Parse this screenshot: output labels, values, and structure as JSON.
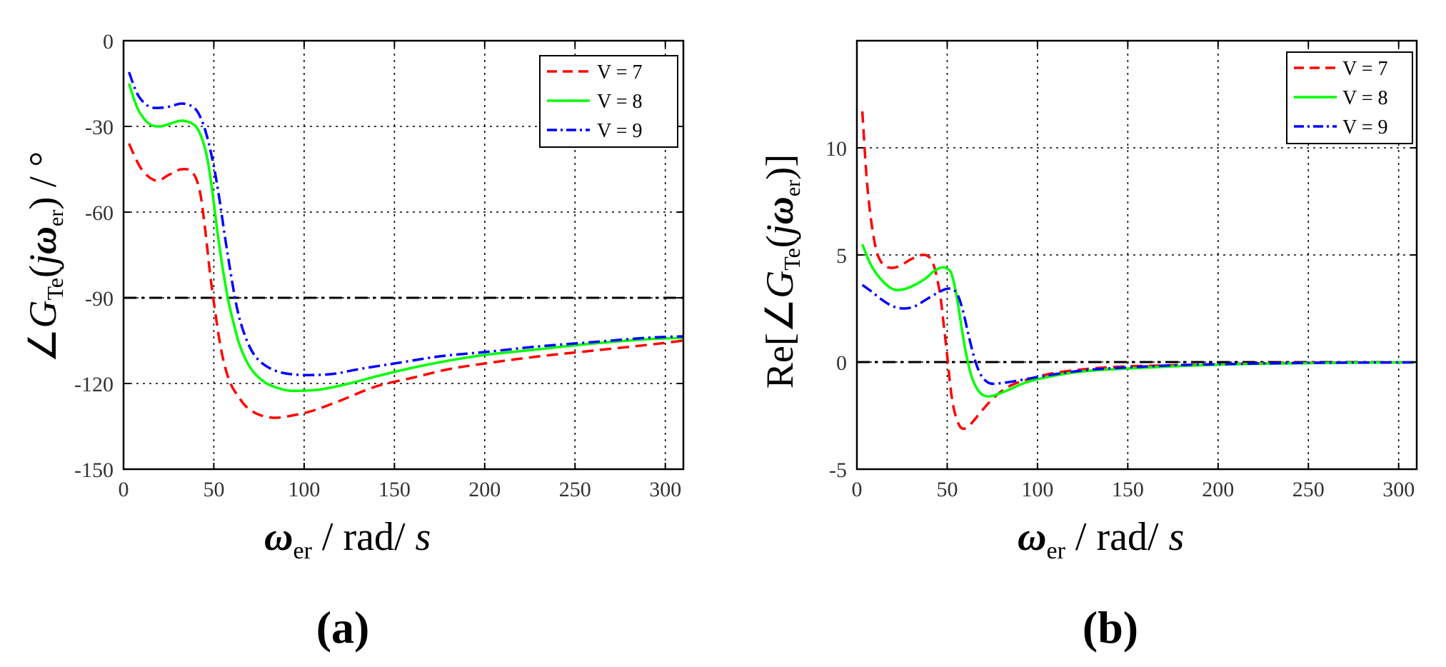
{
  "chart_data": [
    {
      "type": "line",
      "panel_label": "(a)",
      "xlabel": {
        "symbol": "ω",
        "sub": "er",
        "unit": " / rad/ ",
        "unit_ital": "s"
      },
      "ylabel": {
        "prefix": "∠",
        "func": "G",
        "sub": "Te",
        "open": "(",
        "j": "j",
        "omega": "ω",
        "sub2": "er",
        "close": ")",
        "unit": " / °"
      },
      "xlim": [
        0,
        310
      ],
      "ylim": [
        -150,
        0
      ],
      "xticks": [
        0,
        50,
        100,
        150,
        200,
        250,
        300
      ],
      "yticks": [
        -150,
        -120,
        -90,
        -60,
        -30,
        0
      ],
      "xtick_labels": [
        "0",
        "50",
        "100",
        "150",
        "200",
        "250",
        "300"
      ],
      "ytick_labels": [
        "-150",
        "-120",
        "-90",
        "-60",
        "-30",
        "0"
      ],
      "grid": true,
      "legend_position": "top-right",
      "reference_line": {
        "y": -90
      },
      "series": [
        {
          "name": "V = 7",
          "color": "#ff0000",
          "dash": "dashed",
          "x": [
            3,
            10,
            18,
            25,
            32,
            38,
            42,
            45,
            48,
            51,
            54,
            57,
            60,
            63,
            67,
            72,
            78,
            85,
            95,
            105,
            120,
            140,
            160,
            180,
            200,
            230,
            260,
            290,
            310
          ],
          "y": [
            -36,
            -45,
            -49,
            -47,
            -45,
            -46,
            -52,
            -65,
            -82,
            -96,
            -108,
            -116,
            -121,
            -124,
            -127.5,
            -130,
            -131.5,
            -132,
            -131,
            -129.5,
            -126,
            -121,
            -118,
            -115,
            -113,
            -110.5,
            -108.5,
            -106.5,
            -105
          ]
        },
        {
          "name": "V = 8",
          "color": "#00ff00",
          "dash": "solid",
          "x": [
            3,
            8,
            14,
            20,
            26,
            32,
            38,
            42,
            46,
            49,
            52,
            55,
            58,
            61,
            64,
            68,
            72,
            78,
            85,
            92,
            100,
            110,
            125,
            140,
            160,
            180,
            200,
            230,
            260,
            290,
            310
          ],
          "y": [
            -15,
            -24,
            -29,
            -30,
            -29,
            -28,
            -29,
            -32,
            -40,
            -52,
            -67,
            -80,
            -91,
            -99,
            -106,
            -112,
            -116,
            -119.5,
            -121.5,
            -122.5,
            -122.5,
            -122,
            -120,
            -117.5,
            -114.5,
            -112,
            -110,
            -108,
            -106,
            -104.5,
            -104
          ]
        },
        {
          "name": "V = 9",
          "color": "#0000ff",
          "dash": "dashdot",
          "x": [
            3,
            8,
            14,
            20,
            26,
            32,
            38,
            42,
            46,
            50,
            53,
            56,
            59,
            62,
            65,
            69,
            73,
            78,
            84,
            90,
            98,
            108,
            118,
            130,
            150,
            175,
            200,
            230,
            260,
            290,
            310
          ],
          "y": [
            -11,
            -19,
            -23,
            -23.5,
            -23,
            -22,
            -23,
            -26,
            -33,
            -44,
            -55,
            -68,
            -80,
            -91,
            -99,
            -106,
            -110.5,
            -113.5,
            -115.5,
            -116.5,
            -117,
            -117,
            -116.5,
            -115,
            -113,
            -110.5,
            -109,
            -107,
            -105.5,
            -104,
            -103.5
          ]
        }
      ]
    },
    {
      "type": "line",
      "panel_label": "(b)",
      "xlabel": {
        "symbol": "ω",
        "sub": "er",
        "unit": " / rad/ ",
        "unit_ital": "s"
      },
      "ylabel": {
        "prefix": "Re[∠",
        "func": "G",
        "sub": "Te",
        "open": "(",
        "j": "j",
        "omega": "ω",
        "sub2": "er",
        "close": ")]"
      },
      "xlim": [
        0,
        310
      ],
      "ylim": [
        -5,
        15
      ],
      "xticks": [
        0,
        50,
        100,
        150,
        200,
        250,
        300
      ],
      "yticks": [
        -5,
        0,
        5,
        10
      ],
      "xtick_labels": [
        "0",
        "50",
        "100",
        "150",
        "200",
        "250",
        "300"
      ],
      "ytick_labels": [
        "-5",
        "0",
        "5",
        "10"
      ],
      "grid": true,
      "legend_position": "top-right",
      "reference_line": {
        "y": 0
      },
      "series": [
        {
          "name": "V = 7",
          "color": "#ff0000",
          "dash": "dashed",
          "x": [
            3,
            6,
            10,
            14,
            19,
            24,
            30,
            36,
            40,
            43,
            46,
            48,
            50,
            52,
            54,
            57,
            60,
            63,
            67,
            72,
            78,
            85,
            95,
            110,
            130,
            150,
            175,
            200,
            230,
            260,
            290,
            310
          ],
          "y": [
            11.7,
            8,
            5.5,
            4.6,
            4.4,
            4.5,
            4.8,
            5.0,
            4.9,
            4.4,
            3.2,
            1.8,
            0.3,
            -1.3,
            -2.3,
            -3.0,
            -3.1,
            -2.9,
            -2.5,
            -2.0,
            -1.5,
            -1.1,
            -0.8,
            -0.5,
            -0.3,
            -0.2,
            -0.15,
            -0.1,
            -0.05,
            -0.03,
            -0.02,
            -0.01
          ]
        },
        {
          "name": "V = 8",
          "color": "#00ff00",
          "dash": "solid",
          "x": [
            3,
            8,
            14,
            20,
            26,
            32,
            38,
            42,
            46,
            49,
            52,
            54,
            56,
            58,
            60,
            62,
            64,
            67,
            70,
            74,
            78,
            84,
            92,
            100,
            115,
            130,
            150,
            175,
            200,
            230,
            260,
            290,
            310
          ],
          "y": [
            5.5,
            4.5,
            3.8,
            3.4,
            3.4,
            3.6,
            3.9,
            4.2,
            4.4,
            4.4,
            4.2,
            3.6,
            2.7,
            1.6,
            0.6,
            -0.2,
            -0.8,
            -1.3,
            -1.55,
            -1.6,
            -1.5,
            -1.3,
            -1.0,
            -0.8,
            -0.55,
            -0.4,
            -0.3,
            -0.2,
            -0.12,
            -0.07,
            -0.04,
            -0.02,
            -0.01
          ]
        },
        {
          "name": "V = 9",
          "color": "#0000ff",
          "dash": "dashdot",
          "x": [
            3,
            8,
            14,
            20,
            26,
            32,
            38,
            44,
            49,
            53,
            56,
            59,
            62,
            65,
            68,
            71,
            74,
            78,
            83,
            90,
            100,
            115,
            130,
            150,
            175,
            200,
            230,
            260,
            290,
            310
          ],
          "y": [
            3.6,
            3.3,
            2.9,
            2.6,
            2.5,
            2.6,
            2.9,
            3.2,
            3.4,
            3.4,
            3.1,
            2.3,
            1.2,
            0.2,
            -0.5,
            -0.85,
            -1.0,
            -1.0,
            -0.95,
            -0.85,
            -0.7,
            -0.5,
            -0.35,
            -0.25,
            -0.15,
            -0.1,
            -0.06,
            -0.03,
            -0.02,
            -0.01
          ]
        }
      ]
    }
  ]
}
